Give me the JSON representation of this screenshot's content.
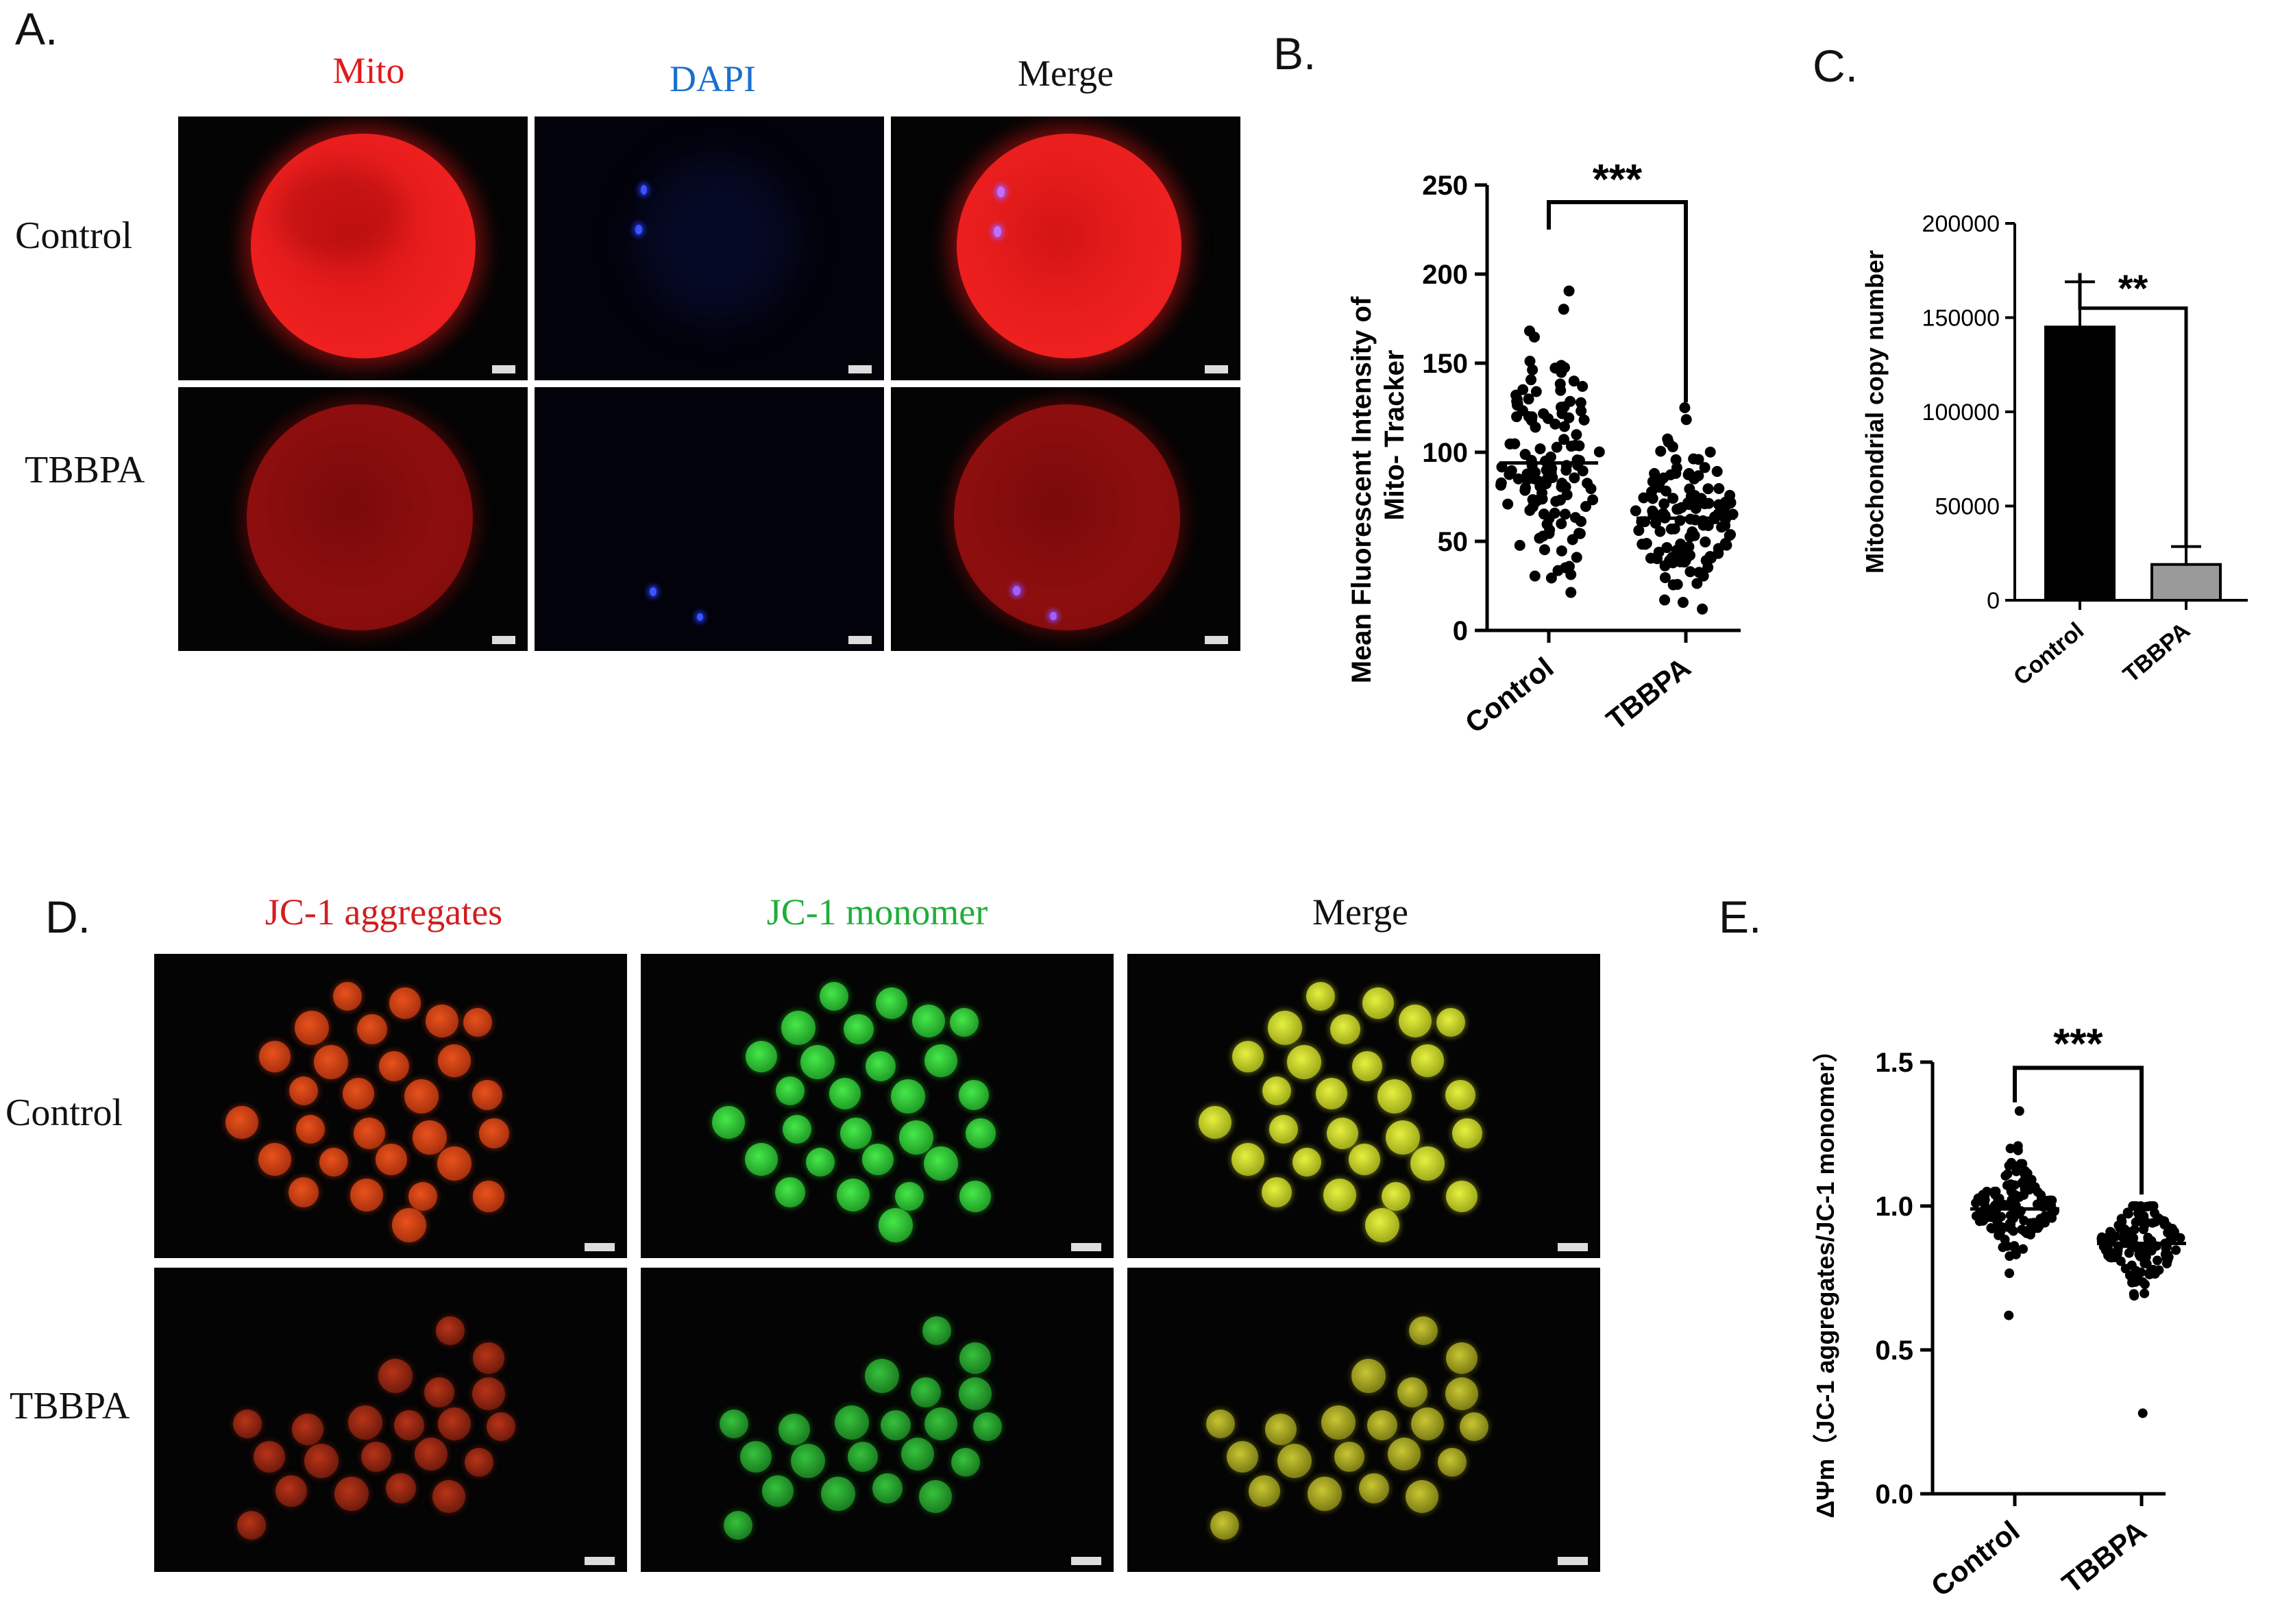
{
  "panel_a": {
    "letter": "A.",
    "columns": [
      "Mito",
      "DAPI",
      "Merge"
    ],
    "column_colors": [
      "#e11a1a",
      "#1a6fd0",
      "#111111"
    ],
    "rows": [
      "Control",
      "TBBPA"
    ]
  },
  "panel_b": {
    "letter": "B."
  },
  "panel_c": {
    "letter": "C."
  },
  "panel_d": {
    "letter": "D.",
    "columns": [
      "JC-1 aggregates",
      "JC-1 monomer",
      "Merge"
    ],
    "column_colors": [
      "#d21e1e",
      "#1fae3a",
      "#111111"
    ],
    "rows": [
      "Control",
      "TBBPA"
    ]
  },
  "panel_e": {
    "letter": "E."
  },
  "chart_data": [
    {
      "panel": "B",
      "type": "scatter",
      "ylabel_lines": [
        "Mean   Fluorescent Intensity of",
        "Mito- Tracker"
      ],
      "ylim": [
        0,
        250
      ],
      "yticks": [
        "0",
        "50",
        "100",
        "150",
        "200",
        "250"
      ],
      "categories": [
        "Control",
        "TBBPA"
      ],
      "means": [
        94,
        63
      ],
      "spread": {
        "Control": [
          20,
          210
        ],
        "TBBPA": [
          12,
          125
        ]
      },
      "n_points_approx": [
        130,
        130
      ],
      "significance": "***"
    },
    {
      "panel": "C",
      "type": "bar",
      "ylabel": "Mitochondrial copy number",
      "ylim": [
        0,
        200000
      ],
      "yticks": [
        "0",
        "50000",
        "100000",
        "150000",
        "200000"
      ],
      "categories": [
        "Control",
        "TBBPA"
      ],
      "values": [
        145000,
        19000
      ],
      "errors": [
        24000,
        9500
      ],
      "bar_colors": [
        "#000000",
        "#9a9a9a"
      ],
      "significance": "**"
    },
    {
      "panel": "E",
      "type": "scatter",
      "ylabel": "ΔΨm（JC-1 aggregates/JC-1 monomer）",
      "ylim": [
        0,
        1.5
      ],
      "yticks": [
        "0.0",
        "0.5",
        "1.0",
        "1.5"
      ],
      "categories": [
        "Control",
        "TBBPA"
      ],
      "means": [
        0.99,
        0.87
      ],
      "spread": {
        "Control": [
          0.62,
          1.33
        ],
        "TBBPA": [
          0.28,
          1.0
        ]
      },
      "n_points_approx": [
        130,
        130
      ],
      "significance": "***"
    }
  ]
}
